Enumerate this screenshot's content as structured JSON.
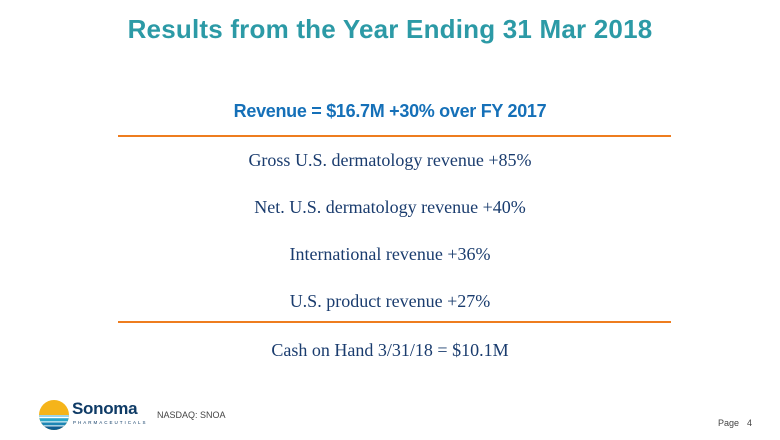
{
  "title": "Results from the Year Ending 31 Mar 2018",
  "headline": "Revenue = $16.7M +30% over FY 2017",
  "items": [
    "Gross U.S. dermatology revenue +85%",
    "Net. U.S. dermatology revenue +40%",
    "International revenue +36%",
    "U.S. product revenue +27%"
  ],
  "cash": "Cash on Hand 3/31/18 = $10.1M",
  "footer": {
    "logo_word": "Sonoma",
    "logo_subtitle": "PHARMACEUTICALS",
    "ticker": "NASDAQ: SNOA",
    "page_label": "Page",
    "page_number": "4"
  },
  "colors": {
    "title": "#2c9aa6",
    "headline": "#1570b8",
    "rule": "#ee7d1f",
    "body_text": "#1a3c6e",
    "logo_text": "#0f3b66",
    "logo_sun": "#f5b41a",
    "logo_water": "#2aa7c9"
  },
  "icons": {
    "logo_mark": "sun-over-water-logo-icon"
  }
}
